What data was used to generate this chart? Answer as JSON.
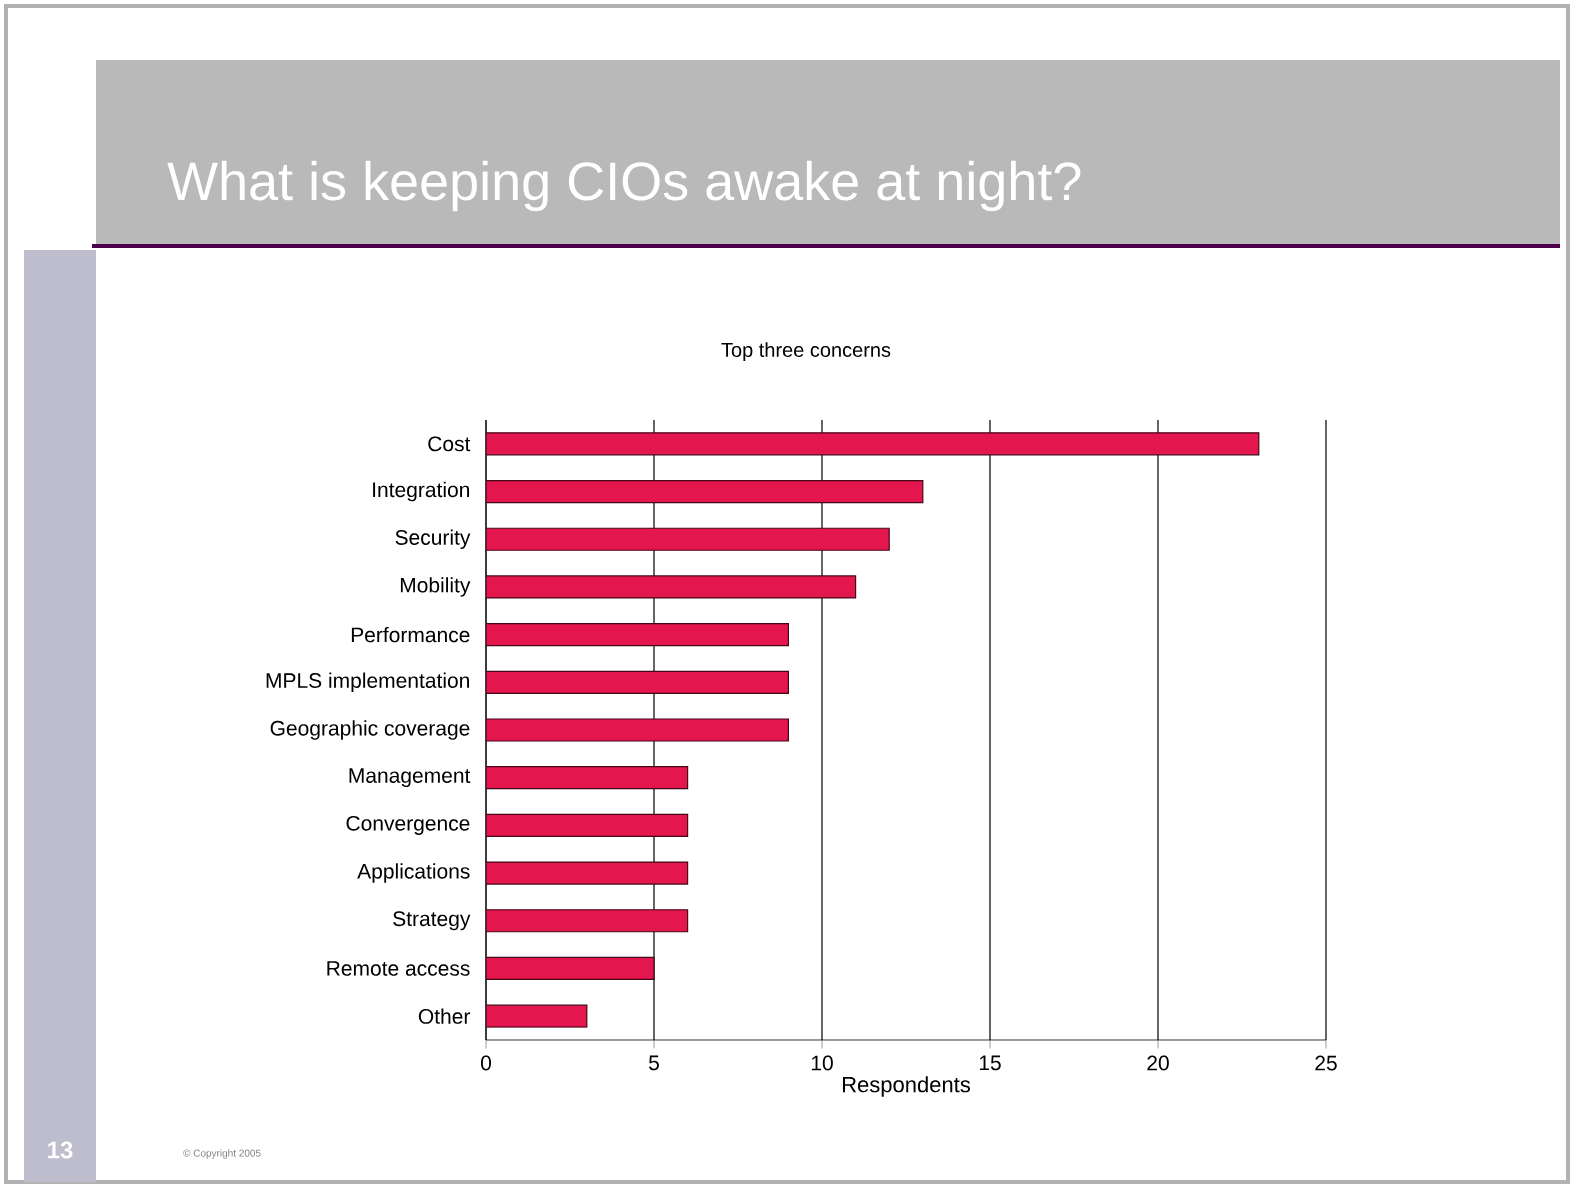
{
  "chart_data": {
    "type": "bar",
    "orientation": "horizontal",
    "title": "What is keeping CIOs awake at night?",
    "subtitle": "Top three concerns",
    "xlabel": "Respondents",
    "categories": [
      "Cost",
      "Integration",
      "Security",
      "Mobility",
      "Performance",
      "MPLS implementation",
      "Geographic coverage",
      "Management",
      "Convergence",
      "Applications",
      "Strategy",
      "Remote access",
      "Other"
    ],
    "values": [
      23,
      13,
      12,
      11,
      9,
      9,
      9,
      6,
      6,
      6,
      6,
      5,
      3
    ],
    "color": "#e3164e",
    "xlim": [
      0,
      25
    ],
    "xticks": [
      0,
      5,
      10,
      15,
      20,
      25
    ],
    "grid": "x",
    "annotations": [
      "13",
      "© Copyright 2005"
    ]
  }
}
